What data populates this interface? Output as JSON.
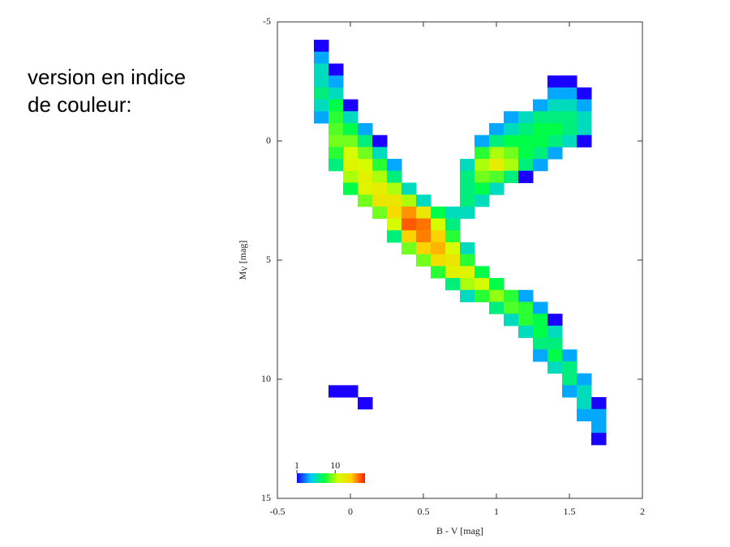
{
  "slide_text": [
    "version en indice",
    "de couleur:"
  ],
  "chart_data": {
    "type": "density",
    "xlabel": "B - V [mag]",
    "ylabel": {
      "main": "M",
      "sub": "V",
      "unit": "[mag]"
    },
    "xlim": [
      -0.5,
      2.0
    ],
    "xticks": [
      -0.5,
      0.0,
      0.5,
      1.0,
      1.5,
      2.0
    ],
    "ylim": [
      -5,
      15
    ],
    "yticks": [
      -5,
      0,
      5,
      10,
      15
    ],
    "y_inverted": true,
    "bin": [
      0.1,
      0.5
    ],
    "colormap": [
      "#1a00ff",
      "#00c8ff",
      "#00ff40",
      "#d4ff00",
      "#ffd000",
      "#ff1a00"
    ],
    "colorbar": {
      "lim": [
        1,
        60
      ],
      "ticks": [
        1,
        10
      ],
      "log": true
    },
    "points": [
      [
        -0.2,
        -4,
        1
      ],
      [
        -0.2,
        -3.5,
        2
      ],
      [
        -0.2,
        -3,
        3
      ],
      [
        -0.1,
        -3,
        1
      ],
      [
        -0.2,
        -2.5,
        3
      ],
      [
        -0.1,
        -2.5,
        2
      ],
      [
        1.4,
        -2.5,
        1
      ],
      [
        1.5,
        -2.5,
        1
      ],
      [
        -0.2,
        -2,
        4
      ],
      [
        -0.1,
        -2,
        3
      ],
      [
        1.4,
        -2,
        2
      ],
      [
        1.5,
        -2,
        2
      ],
      [
        1.6,
        -2,
        1
      ],
      [
        -0.2,
        -1.5,
        3
      ],
      [
        -0.1,
        -1.5,
        5
      ],
      [
        0.0,
        -1.5,
        1
      ],
      [
        1.3,
        -1.5,
        2
      ],
      [
        1.4,
        -1.5,
        3
      ],
      [
        1.5,
        -1.5,
        3
      ],
      [
        1.6,
        -1.5,
        2
      ],
      [
        -0.2,
        -1,
        2
      ],
      [
        -0.1,
        -1,
        6
      ],
      [
        0.0,
        -1,
        3
      ],
      [
        1.1,
        -1,
        2
      ],
      [
        1.2,
        -1,
        3
      ],
      [
        1.3,
        -1,
        4
      ],
      [
        1.4,
        -1,
        4
      ],
      [
        1.5,
        -1,
        4
      ],
      [
        1.6,
        -1,
        3
      ],
      [
        -0.1,
        -0.5,
        7
      ],
      [
        0.0,
        -0.5,
        5
      ],
      [
        0.1,
        -0.5,
        2
      ],
      [
        1.0,
        -0.5,
        2
      ],
      [
        1.1,
        -0.5,
        3
      ],
      [
        1.2,
        -0.5,
        4
      ],
      [
        1.3,
        -0.5,
        5
      ],
      [
        1.4,
        -0.5,
        5
      ],
      [
        1.5,
        -0.5,
        4
      ],
      [
        1.6,
        -0.5,
        3
      ],
      [
        -0.1,
        0,
        8
      ],
      [
        0.0,
        0,
        8
      ],
      [
        0.1,
        0,
        4
      ],
      [
        0.2,
        0,
        1
      ],
      [
        0.9,
        0,
        2
      ],
      [
        1.0,
        0,
        4
      ],
      [
        1.1,
        0,
        5
      ],
      [
        1.2,
        0,
        5
      ],
      [
        1.3,
        0,
        5
      ],
      [
        1.4,
        0,
        4
      ],
      [
        1.5,
        0,
        3
      ],
      [
        1.6,
        0,
        1
      ],
      [
        -0.1,
        0.5,
        6
      ],
      [
        0.0,
        0.5,
        12
      ],
      [
        0.1,
        0.5,
        8
      ],
      [
        0.2,
        0.5,
        3
      ],
      [
        0.9,
        0.5,
        6
      ],
      [
        1.0,
        0.5,
        10
      ],
      [
        1.1,
        0.5,
        8
      ],
      [
        1.2,
        0.5,
        5
      ],
      [
        1.3,
        0.5,
        4
      ],
      [
        1.4,
        0.5,
        2
      ],
      [
        -0.1,
        1,
        4
      ],
      [
        0.0,
        1,
        14
      ],
      [
        0.1,
        1,
        12
      ],
      [
        0.2,
        1,
        6
      ],
      [
        0.3,
        1,
        2
      ],
      [
        0.8,
        1,
        3
      ],
      [
        0.9,
        1,
        10
      ],
      [
        1.0,
        1,
        16
      ],
      [
        1.1,
        1,
        10
      ],
      [
        1.2,
        1,
        4
      ],
      [
        1.3,
        1,
        2
      ],
      [
        0.0,
        1.5,
        10
      ],
      [
        0.1,
        1.5,
        15
      ],
      [
        0.2,
        1.5,
        10
      ],
      [
        0.3,
        1.5,
        4
      ],
      [
        0.8,
        1.5,
        4
      ],
      [
        0.9,
        1.5,
        8
      ],
      [
        1.0,
        1.5,
        7
      ],
      [
        1.1,
        1.5,
        4
      ],
      [
        1.2,
        1.5,
        1
      ],
      [
        0.0,
        2,
        5
      ],
      [
        0.1,
        2,
        14
      ],
      [
        0.2,
        2,
        16
      ],
      [
        0.3,
        2,
        10
      ],
      [
        0.4,
        2,
        3
      ],
      [
        0.8,
        2,
        4
      ],
      [
        0.9,
        2,
        5
      ],
      [
        1.0,
        2,
        3
      ],
      [
        0.1,
        2.5,
        8
      ],
      [
        0.2,
        2.5,
        18
      ],
      [
        0.3,
        2.5,
        18
      ],
      [
        0.4,
        2.5,
        10
      ],
      [
        0.5,
        2.5,
        3
      ],
      [
        0.8,
        2.5,
        4
      ],
      [
        0.9,
        2.5,
        3
      ],
      [
        0.2,
        3,
        8
      ],
      [
        0.3,
        3,
        22
      ],
      [
        0.4,
        3,
        35
      ],
      [
        0.5,
        3,
        18
      ],
      [
        0.6,
        3,
        5
      ],
      [
        0.7,
        3,
        3
      ],
      [
        0.8,
        3,
        3
      ],
      [
        0.3,
        3.5,
        12
      ],
      [
        0.4,
        3.5,
        45
      ],
      [
        0.5,
        3.5,
        40
      ],
      [
        0.6,
        3.5,
        12
      ],
      [
        0.7,
        3.5,
        4
      ],
      [
        0.3,
        4,
        4
      ],
      [
        0.4,
        4,
        25
      ],
      [
        0.5,
        4,
        38
      ],
      [
        0.6,
        4,
        25
      ],
      [
        0.7,
        4,
        6
      ],
      [
        0.4,
        4.5,
        8
      ],
      [
        0.5,
        4.5,
        25
      ],
      [
        0.6,
        4.5,
        30
      ],
      [
        0.7,
        4.5,
        12
      ],
      [
        0.8,
        4.5,
        3
      ],
      [
        0.5,
        5,
        8
      ],
      [
        0.6,
        5,
        20
      ],
      [
        0.7,
        5,
        18
      ],
      [
        0.8,
        5,
        6
      ],
      [
        0.6,
        5.5,
        6
      ],
      [
        0.7,
        5.5,
        15
      ],
      [
        0.8,
        5.5,
        14
      ],
      [
        0.9,
        5.5,
        5
      ],
      [
        0.7,
        6,
        4
      ],
      [
        0.8,
        6,
        10
      ],
      [
        0.9,
        6,
        12
      ],
      [
        1.0,
        6,
        5
      ],
      [
        0.8,
        6.5,
        3
      ],
      [
        0.9,
        6.5,
        6
      ],
      [
        1.0,
        6.5,
        9
      ],
      [
        1.1,
        6.5,
        6
      ],
      [
        1.2,
        6.5,
        2
      ],
      [
        1.0,
        7,
        4
      ],
      [
        1.1,
        7,
        7
      ],
      [
        1.2,
        7,
        6
      ],
      [
        1.3,
        7,
        2
      ],
      [
        1.1,
        7.5,
        3
      ],
      [
        1.2,
        7.5,
        6
      ],
      [
        1.3,
        7.5,
        5
      ],
      [
        1.4,
        7.5,
        1
      ],
      [
        1.2,
        8,
        3
      ],
      [
        1.3,
        8,
        5
      ],
      [
        1.4,
        8,
        3
      ],
      [
        1.3,
        8.5,
        4
      ],
      [
        1.4,
        8.5,
        4
      ],
      [
        1.3,
        9,
        2
      ],
      [
        1.4,
        9,
        5
      ],
      [
        1.5,
        9,
        2
      ],
      [
        1.4,
        9.5,
        3
      ],
      [
        1.5,
        9.5,
        4
      ],
      [
        1.5,
        10,
        4
      ],
      [
        1.6,
        10,
        2
      ],
      [
        -0.1,
        10.5,
        1
      ],
      [
        0.0,
        10.5,
        1
      ],
      [
        1.5,
        10.5,
        2
      ],
      [
        1.6,
        10.5,
        3
      ],
      [
        0.1,
        11,
        1
      ],
      [
        1.6,
        11,
        3
      ],
      [
        1.7,
        11,
        1
      ],
      [
        1.6,
        11.5,
        2
      ],
      [
        1.7,
        11.5,
        2
      ],
      [
        1.7,
        12,
        2
      ],
      [
        1.7,
        12.5,
        1
      ]
    ]
  }
}
